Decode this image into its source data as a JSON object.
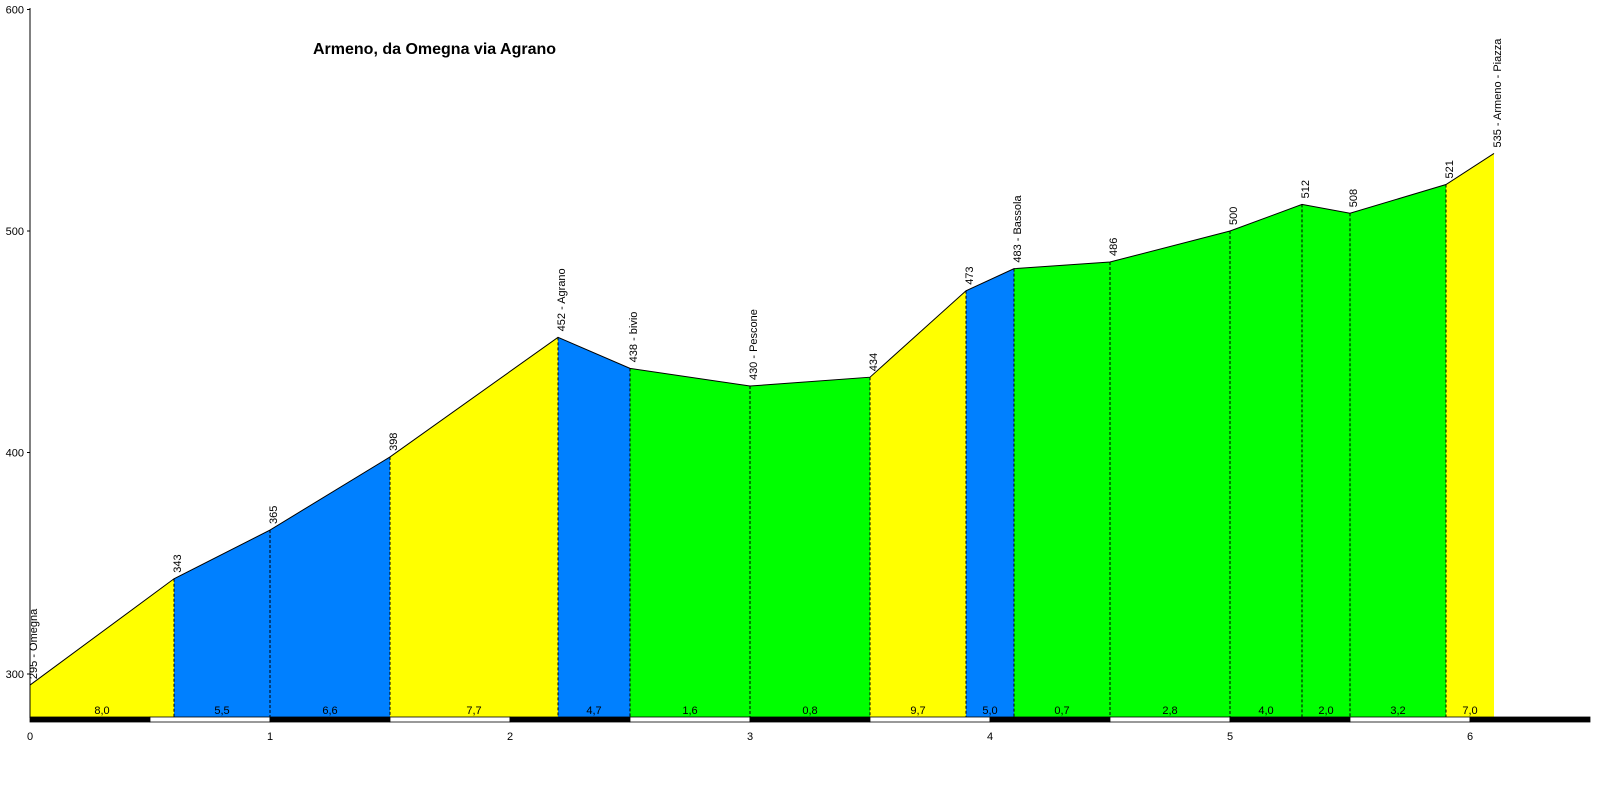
{
  "chart_data": {
    "type": "area",
    "title": "Armeno, da Omegna via Agrano",
    "xlabel": "",
    "ylabel": "",
    "xlim": [
      0,
      6.5
    ],
    "ylim": [
      280,
      600
    ],
    "y_ticks": [
      "300",
      "400",
      "500",
      "600"
    ],
    "x_ticks": [
      "0",
      "1",
      "2",
      "3",
      "4",
      "5",
      "6"
    ],
    "points": [
      {
        "x": 0.0,
        "y": 295,
        "label": "295 - Omegna"
      },
      {
        "x": 0.6,
        "y": 343,
        "label": "343"
      },
      {
        "x": 1.0,
        "y": 365,
        "label": "365"
      },
      {
        "x": 1.5,
        "y": 398,
        "label": "398"
      },
      {
        "x": 2.2,
        "y": 452,
        "label": "452 - Agrano"
      },
      {
        "x": 2.5,
        "y": 438,
        "label": "438 - bivio"
      },
      {
        "x": 3.0,
        "y": 430,
        "label": "430 - Pescone"
      },
      {
        "x": 3.5,
        "y": 434,
        "label": "434"
      },
      {
        "x": 3.9,
        "y": 473,
        "label": "473"
      },
      {
        "x": 4.1,
        "y": 483,
        "label": "483 - Bassola"
      },
      {
        "x": 4.5,
        "y": 486,
        "label": "486"
      },
      {
        "x": 5.0,
        "y": 500,
        "label": "500"
      },
      {
        "x": 5.3,
        "y": 512,
        "label": "512"
      },
      {
        "x": 5.5,
        "y": 508,
        "label": "508"
      },
      {
        "x": 5.9,
        "y": 521,
        "label": "521"
      },
      {
        "x": 6.1,
        "y": 535,
        "label": "535 - Armeno - Piazza"
      }
    ],
    "segments": [
      {
        "label": "8,0",
        "color": "#ffff00"
      },
      {
        "label": "5,5",
        "color": "#0080ff"
      },
      {
        "label": "6,6",
        "color": "#0080ff"
      },
      {
        "label": "7,7",
        "color": "#ffff00"
      },
      {
        "label": "4,7",
        "color": "#0080ff"
      },
      {
        "label": "1,6",
        "color": "#00ff00"
      },
      {
        "label": "0,8",
        "color": "#00ff00"
      },
      {
        "label": "9,7",
        "color": "#ffff00"
      },
      {
        "label": "5,0",
        "color": "#0080ff"
      },
      {
        "label": "0,7",
        "color": "#00ff00"
      },
      {
        "label": "2,8",
        "color": "#00ff00"
      },
      {
        "label": "4,0",
        "color": "#00ff00"
      },
      {
        "label": "2,0",
        "color": "#00ff00"
      },
      {
        "label": "3,2",
        "color": "#00ff00"
      },
      {
        "label": "7,0",
        "color": "#ffff00"
      }
    ]
  }
}
